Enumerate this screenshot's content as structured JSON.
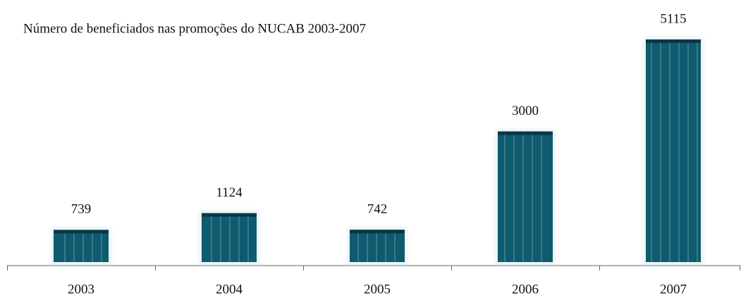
{
  "chart_data": {
    "type": "bar",
    "title": "Número de beneficiados nas promoções do NUCAB 2003-2007",
    "categories": [
      "2003",
      "2004",
      "2005",
      "2006",
      "2007"
    ],
    "values": [
      739,
      1124,
      742,
      3000,
      5115
    ],
    "color": "#0e5a6f"
  }
}
